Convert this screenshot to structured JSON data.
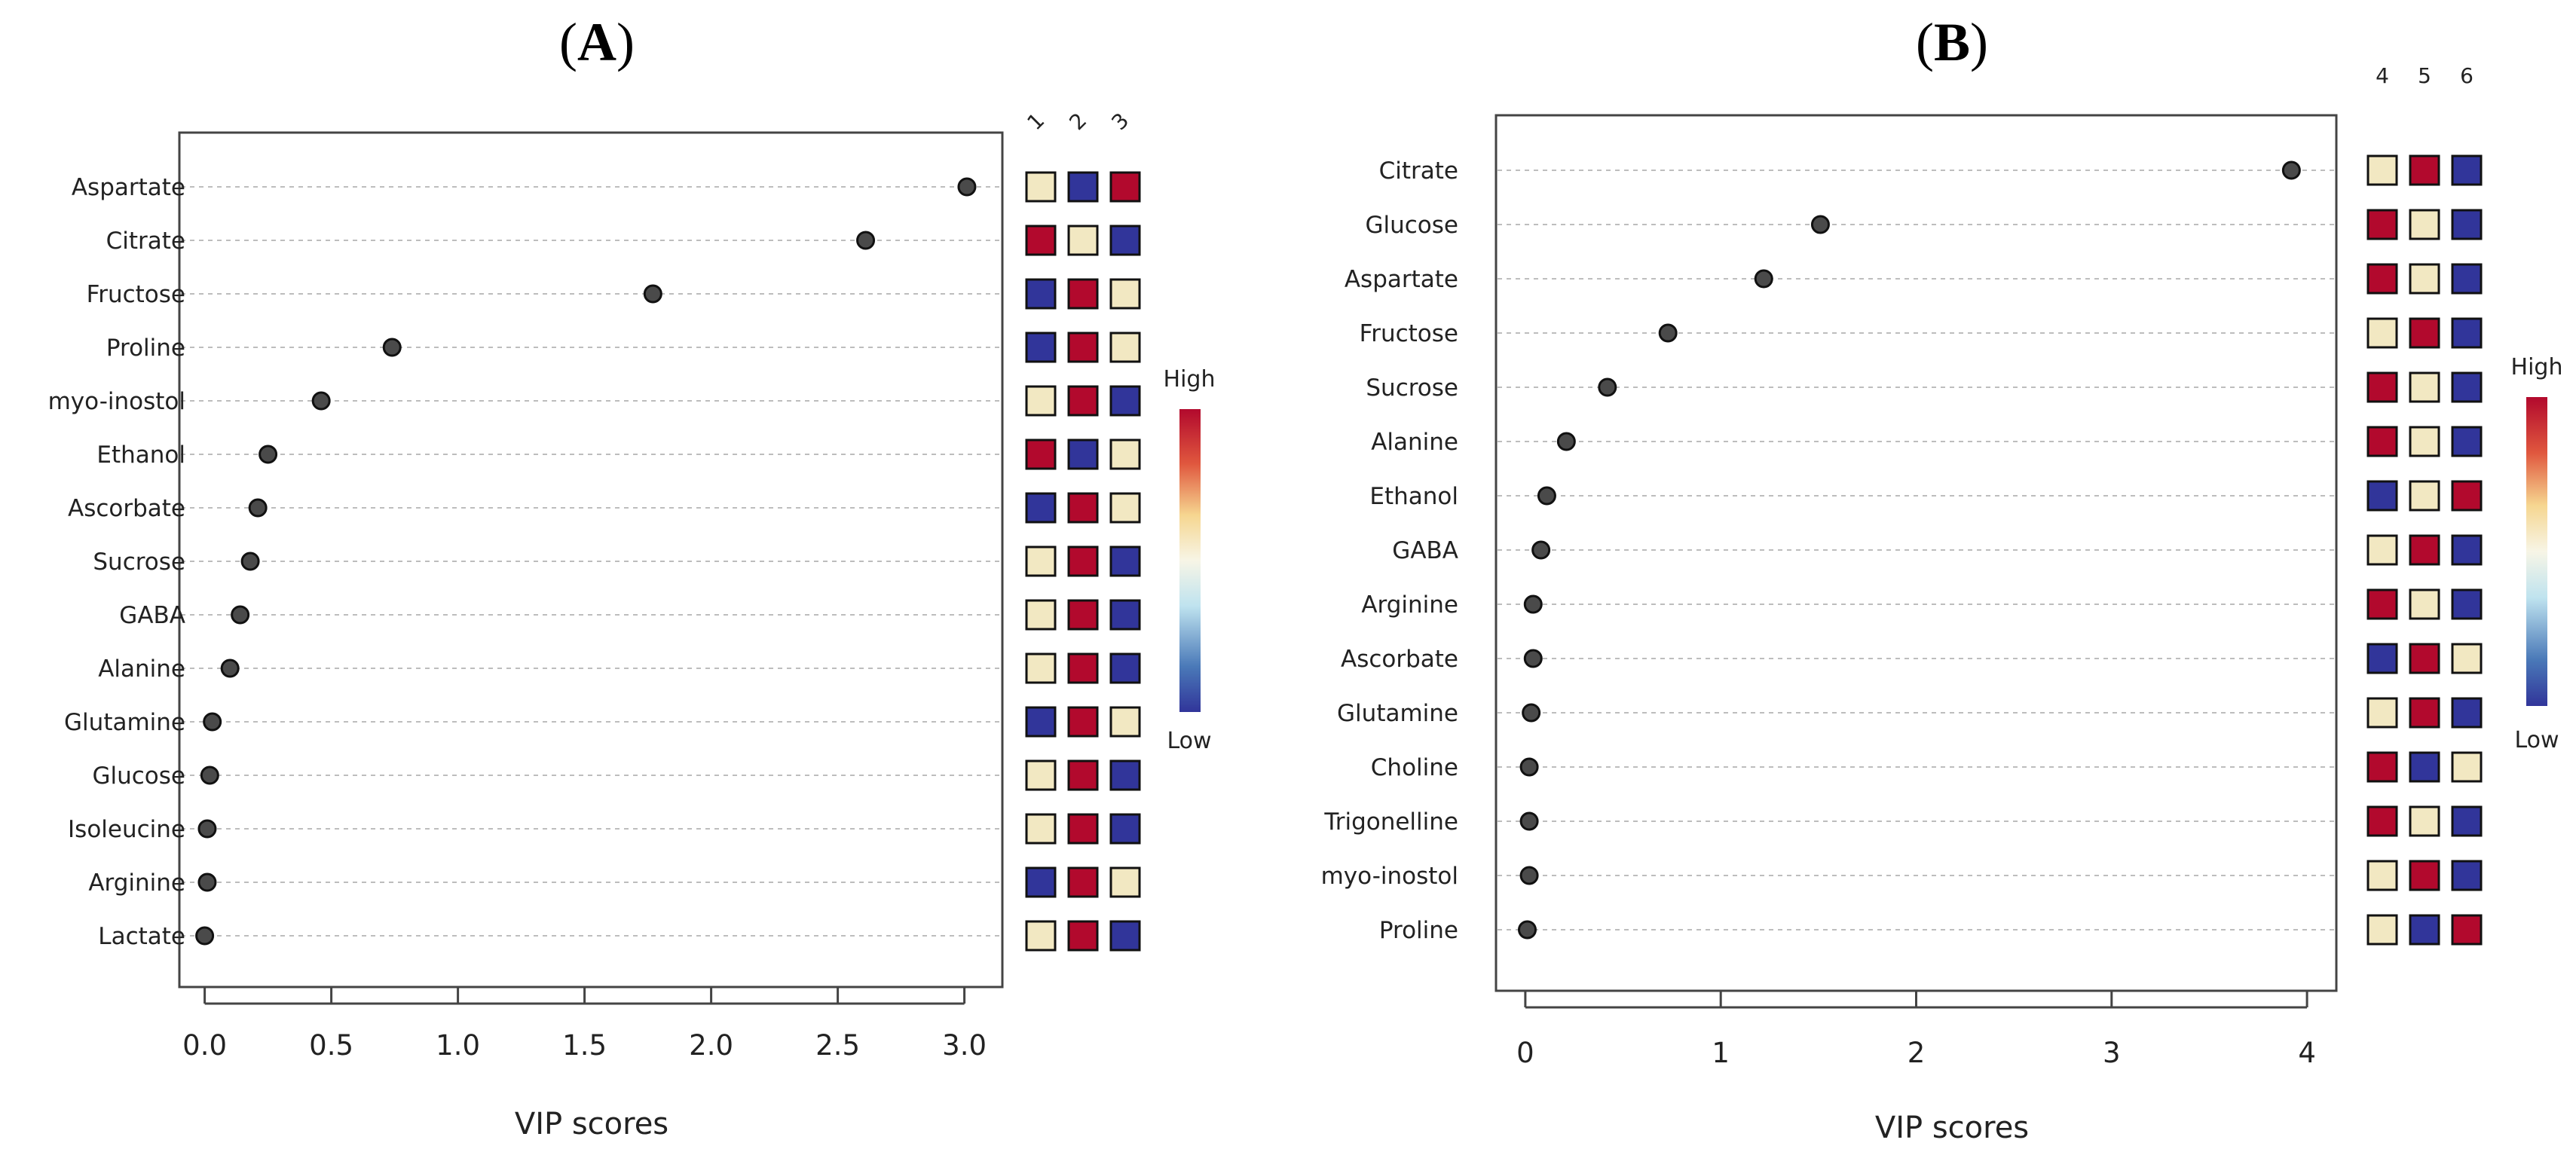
{
  "figure": {
    "colors": {
      "high": "#b2092d",
      "mid": "#f2e8c2",
      "low": "#31359a",
      "point": "#4a4a4a",
      "grid": "#bdbdbd"
    }
  },
  "chart_data": [
    {
      "panel": "(A)",
      "panel_letter": "A",
      "type": "scatter",
      "xlabel": "VIP scores",
      "xlim": [
        -0.1,
        3.15
      ],
      "xticks": [
        0.0,
        0.5,
        1.0,
        1.5,
        2.0,
        2.5,
        3.0
      ],
      "xtick_labels": [
        "0.0",
        "0.5",
        "1.0",
        "1.5",
        "2.0",
        "2.5",
        "3.0"
      ],
      "categories": [
        "Aspartate",
        "Citrate",
        "Fructose",
        "Proline",
        "myo-inostol",
        "Ethanol",
        "Ascorbate",
        "Sucrose",
        "GABA",
        "Alanine",
        "Glutamine",
        "Glucose",
        "Isoleucine",
        "Arginine",
        "Lactate"
      ],
      "values": [
        3.01,
        2.61,
        1.77,
        0.74,
        0.46,
        0.25,
        0.21,
        0.18,
        0.14,
        0.1,
        0.03,
        0.02,
        0.01,
        0.01,
        0.0
      ],
      "heatmap": {
        "columns": [
          "1",
          "2",
          "3"
        ],
        "levels": [
          [
            "mid",
            "low",
            "high"
          ],
          [
            "high",
            "mid",
            "low"
          ],
          [
            "low",
            "high",
            "mid"
          ],
          [
            "low",
            "high",
            "mid"
          ],
          [
            "mid",
            "high",
            "low"
          ],
          [
            "high",
            "low",
            "mid"
          ],
          [
            "low",
            "high",
            "mid"
          ],
          [
            "mid",
            "high",
            "low"
          ],
          [
            "mid",
            "high",
            "low"
          ],
          [
            "mid",
            "high",
            "low"
          ],
          [
            "low",
            "high",
            "mid"
          ],
          [
            "mid",
            "high",
            "low"
          ],
          [
            "mid",
            "high",
            "low"
          ],
          [
            "low",
            "high",
            "mid"
          ],
          [
            "mid",
            "high",
            "low"
          ]
        ]
      },
      "legend": {
        "high_label": "High",
        "low_label": "Low"
      }
    },
    {
      "panel": "(B)",
      "panel_letter": "B",
      "type": "scatter",
      "xlabel": "VIP scores",
      "xlim": [
        -0.15,
        4.15
      ],
      "xticks": [
        0,
        1,
        2,
        3,
        4
      ],
      "xtick_labels": [
        "0",
        "1",
        "2",
        "3",
        "4"
      ],
      "categories": [
        "Citrate",
        "Glucose",
        "Aspartate",
        "Fructose",
        "Sucrose",
        "Alanine",
        "Ethanol",
        "GABA",
        "Arginine",
        "Ascorbate",
        "Glutamine",
        "Choline",
        "Trigonelline",
        "myo-inostol",
        "Proline"
      ],
      "values": [
        3.92,
        1.51,
        1.22,
        0.73,
        0.42,
        0.21,
        0.11,
        0.08,
        0.04,
        0.04,
        0.03,
        0.02,
        0.02,
        0.02,
        0.01
      ],
      "heatmap": {
        "columns": [
          "4",
          "5",
          "6"
        ],
        "levels": [
          [
            "mid",
            "high",
            "low"
          ],
          [
            "high",
            "mid",
            "low"
          ],
          [
            "high",
            "mid",
            "low"
          ],
          [
            "mid",
            "high",
            "low"
          ],
          [
            "high",
            "mid",
            "low"
          ],
          [
            "high",
            "mid",
            "low"
          ],
          [
            "low",
            "mid",
            "high"
          ],
          [
            "mid",
            "high",
            "low"
          ],
          [
            "high",
            "mid",
            "low"
          ],
          [
            "low",
            "high",
            "mid"
          ],
          [
            "mid",
            "high",
            "low"
          ],
          [
            "high",
            "low",
            "mid"
          ],
          [
            "high",
            "mid",
            "low"
          ],
          [
            "mid",
            "high",
            "low"
          ],
          [
            "mid",
            "low",
            "high"
          ]
        ]
      },
      "legend": {
        "high_label": "High",
        "low_label": "Low"
      }
    }
  ]
}
